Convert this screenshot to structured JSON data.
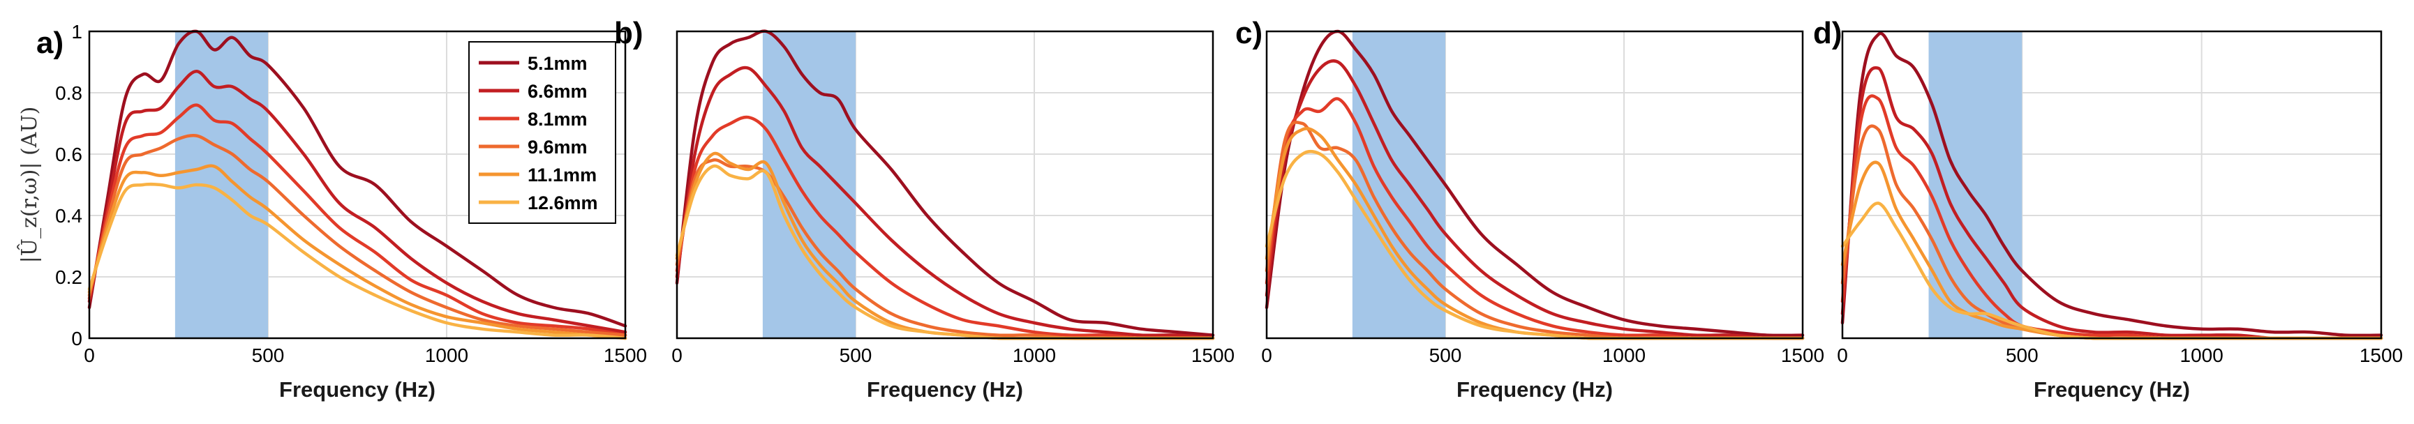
{
  "figure": {
    "ylabel": "|Û_z(r,ω)| (AU)",
    "xlabel": "Frequency (Hz)",
    "shaded_band_color": "#a4c6e8"
  },
  "chart_data": [
    {
      "panel": "a)",
      "type": "line",
      "xlabel": "Frequency (Hz)",
      "ylabel": "|Û_z(r,ω)| (AU)",
      "xlim": [
        0,
        1500
      ],
      "ylim": [
        0,
        1
      ],
      "xticks": [
        "0",
        "500",
        "1000",
        "1500"
      ],
      "yticks": [
        "0",
        "0.2",
        "0.4",
        "0.6",
        "0.8",
        "1"
      ],
      "grid": true,
      "shaded_band": [
        240,
        500
      ],
      "legend": {
        "placement": "top-right",
        "entries": [
          "5.1mm",
          "6.6mm",
          "8.1mm",
          "9.6mm",
          "11.1mm",
          "12.6mm"
        ]
      },
      "x": [
        0,
        50,
        100,
        150,
        200,
        250,
        300,
        350,
        400,
        450,
        500,
        600,
        700,
        800,
        900,
        1000,
        1100,
        1200,
        1300,
        1400,
        1500
      ],
      "series": [
        {
          "name": "5.1mm",
          "color": "#9d0f1f",
          "values": [
            0.1,
            0.45,
            0.78,
            0.86,
            0.84,
            0.96,
            1.0,
            0.94,
            0.98,
            0.92,
            0.89,
            0.75,
            0.56,
            0.5,
            0.38,
            0.3,
            0.22,
            0.14,
            0.1,
            0.08,
            0.04
          ]
        },
        {
          "name": "6.6mm",
          "color": "#c21e22",
          "values": [
            0.12,
            0.42,
            0.7,
            0.74,
            0.75,
            0.82,
            0.87,
            0.82,
            0.82,
            0.78,
            0.74,
            0.6,
            0.44,
            0.36,
            0.26,
            0.18,
            0.12,
            0.08,
            0.06,
            0.04,
            0.02
          ]
        },
        {
          "name": "8.1mm",
          "color": "#e23b28",
          "values": [
            0.13,
            0.4,
            0.62,
            0.66,
            0.67,
            0.72,
            0.76,
            0.71,
            0.7,
            0.65,
            0.6,
            0.48,
            0.36,
            0.28,
            0.19,
            0.14,
            0.08,
            0.05,
            0.04,
            0.03,
            0.01
          ]
        },
        {
          "name": "9.6mm",
          "color": "#ee6a2e",
          "values": [
            0.14,
            0.38,
            0.57,
            0.6,
            0.62,
            0.65,
            0.66,
            0.63,
            0.6,
            0.55,
            0.51,
            0.4,
            0.3,
            0.22,
            0.15,
            0.1,
            0.06,
            0.04,
            0.03,
            0.02,
            0.01
          ]
        },
        {
          "name": "11.1mm",
          "color": "#f5952f",
          "values": [
            0.15,
            0.36,
            0.52,
            0.54,
            0.53,
            0.54,
            0.55,
            0.56,
            0.51,
            0.46,
            0.42,
            0.32,
            0.24,
            0.17,
            0.11,
            0.07,
            0.05,
            0.03,
            0.02,
            0.01,
            0.0
          ]
        },
        {
          "name": "12.6mm",
          "color": "#f9b244",
          "values": [
            0.16,
            0.34,
            0.48,
            0.5,
            0.5,
            0.49,
            0.5,
            0.49,
            0.45,
            0.4,
            0.37,
            0.28,
            0.2,
            0.14,
            0.09,
            0.05,
            0.03,
            0.02,
            0.01,
            0.01,
            0.0
          ]
        }
      ]
    },
    {
      "panel": "b)",
      "type": "line",
      "xlabel": "Frequency (Hz)",
      "xlim": [
        0,
        1500
      ],
      "ylim": [
        0,
        1
      ],
      "xticks": [
        "0",
        "500",
        "1000",
        "1500"
      ],
      "grid": true,
      "shaded_band": [
        240,
        500
      ],
      "x": [
        0,
        50,
        100,
        150,
        200,
        250,
        300,
        350,
        400,
        450,
        500,
        600,
        700,
        800,
        900,
        1000,
        1100,
        1200,
        1300,
        1400,
        1500
      ],
      "series": [
        {
          "name": "5.1mm",
          "color": "#9d0f1f",
          "values": [
            0.18,
            0.68,
            0.9,
            0.96,
            0.98,
            1.0,
            0.95,
            0.86,
            0.8,
            0.78,
            0.68,
            0.55,
            0.4,
            0.28,
            0.18,
            0.12,
            0.06,
            0.05,
            0.03,
            0.02,
            0.01
          ]
        },
        {
          "name": "6.6mm",
          "color": "#c21e22",
          "values": [
            0.2,
            0.6,
            0.8,
            0.86,
            0.88,
            0.82,
            0.74,
            0.62,
            0.56,
            0.5,
            0.44,
            0.32,
            0.22,
            0.14,
            0.08,
            0.05,
            0.03,
            0.02,
            0.01,
            0.01,
            0.0
          ]
        },
        {
          "name": "8.1mm",
          "color": "#e23b28",
          "values": [
            0.22,
            0.55,
            0.66,
            0.7,
            0.72,
            0.68,
            0.58,
            0.48,
            0.4,
            0.34,
            0.28,
            0.18,
            0.11,
            0.06,
            0.04,
            0.02,
            0.01,
            0.01,
            0.0,
            0.0,
            0.0
          ]
        },
        {
          "name": "9.6mm",
          "color": "#ee6a2e",
          "values": [
            0.24,
            0.52,
            0.58,
            0.56,
            0.56,
            0.54,
            0.46,
            0.36,
            0.28,
            0.22,
            0.16,
            0.08,
            0.04,
            0.02,
            0.01,
            0.01,
            0.0,
            0.0,
            0.0,
            0.0,
            0.0
          ]
        },
        {
          "name": "11.1mm",
          "color": "#f5952f",
          "values": [
            0.26,
            0.5,
            0.6,
            0.57,
            0.55,
            0.57,
            0.44,
            0.32,
            0.24,
            0.18,
            0.12,
            0.05,
            0.02,
            0.01,
            0.0,
            0.0,
            0.0,
            0.0,
            0.0,
            0.0,
            0.0
          ]
        },
        {
          "name": "12.6mm",
          "color": "#f9b244",
          "values": [
            0.27,
            0.48,
            0.56,
            0.53,
            0.52,
            0.54,
            0.4,
            0.29,
            0.21,
            0.15,
            0.1,
            0.04,
            0.02,
            0.01,
            0.0,
            0.0,
            0.0,
            0.0,
            0.0,
            0.0,
            0.0
          ]
        }
      ]
    },
    {
      "panel": "c)",
      "type": "line",
      "xlabel": "Frequency (Hz)",
      "xlim": [
        0,
        1500
      ],
      "ylim": [
        0,
        1
      ],
      "xticks": [
        "0",
        "500",
        "1000",
        "1500"
      ],
      "grid": true,
      "shaded_band": [
        240,
        500
      ],
      "x": [
        0,
        50,
        100,
        150,
        200,
        250,
        300,
        350,
        400,
        450,
        500,
        600,
        700,
        800,
        900,
        1000,
        1100,
        1200,
        1300,
        1400,
        1500
      ],
      "series": [
        {
          "name": "5.1mm",
          "color": "#9d0f1f",
          "values": [
            0.1,
            0.55,
            0.8,
            0.95,
            1.0,
            0.94,
            0.86,
            0.74,
            0.66,
            0.58,
            0.5,
            0.34,
            0.24,
            0.15,
            0.1,
            0.06,
            0.04,
            0.03,
            0.02,
            0.01,
            0.01
          ]
        },
        {
          "name": "6.6mm",
          "color": "#c21e22",
          "values": [
            0.14,
            0.58,
            0.78,
            0.88,
            0.9,
            0.82,
            0.7,
            0.58,
            0.5,
            0.42,
            0.34,
            0.22,
            0.14,
            0.08,
            0.05,
            0.03,
            0.02,
            0.01,
            0.01,
            0.0,
            0.0
          ]
        },
        {
          "name": "8.1mm",
          "color": "#e23b28",
          "values": [
            0.18,
            0.62,
            0.74,
            0.74,
            0.78,
            0.7,
            0.56,
            0.46,
            0.38,
            0.3,
            0.24,
            0.14,
            0.08,
            0.04,
            0.02,
            0.01,
            0.01,
            0.0,
            0.0,
            0.0,
            0.0
          ]
        },
        {
          "name": "9.6mm",
          "color": "#ee6a2e",
          "values": [
            0.22,
            0.64,
            0.7,
            0.62,
            0.62,
            0.58,
            0.46,
            0.36,
            0.28,
            0.22,
            0.16,
            0.08,
            0.04,
            0.02,
            0.01,
            0.0,
            0.0,
            0.0,
            0.0,
            0.0,
            0.0
          ]
        },
        {
          "name": "11.1mm",
          "color": "#f5952f",
          "values": [
            0.26,
            0.6,
            0.68,
            0.66,
            0.58,
            0.5,
            0.4,
            0.3,
            0.22,
            0.16,
            0.11,
            0.05,
            0.02,
            0.01,
            0.0,
            0.0,
            0.0,
            0.0,
            0.0,
            0.0,
            0.0
          ]
        },
        {
          "name": "12.6mm",
          "color": "#f9b244",
          "values": [
            0.3,
            0.52,
            0.6,
            0.6,
            0.54,
            0.45,
            0.36,
            0.27,
            0.19,
            0.13,
            0.09,
            0.04,
            0.02,
            0.01,
            0.0,
            0.0,
            0.0,
            0.0,
            0.0,
            0.0,
            0.0
          ]
        }
      ]
    },
    {
      "panel": "d)",
      "type": "line",
      "xlabel": "Frequency (Hz)",
      "xlim": [
        0,
        1500
      ],
      "ylim": [
        0,
        1
      ],
      "xticks": [
        "0",
        "500",
        "1000",
        "1500"
      ],
      "grid": true,
      "shaded_band": [
        240,
        500
      ],
      "x": [
        0,
        50,
        100,
        150,
        200,
        250,
        300,
        350,
        400,
        450,
        500,
        600,
        700,
        800,
        900,
        1000,
        1100,
        1200,
        1300,
        1400,
        1500
      ],
      "series": [
        {
          "name": "5.1mm",
          "color": "#9d0f1f",
          "values": [
            0.05,
            0.8,
            0.99,
            0.92,
            0.88,
            0.76,
            0.58,
            0.48,
            0.4,
            0.3,
            0.22,
            0.12,
            0.08,
            0.06,
            0.04,
            0.03,
            0.03,
            0.02,
            0.02,
            0.01,
            0.01
          ]
        },
        {
          "name": "6.6mm",
          "color": "#c21e22",
          "values": [
            0.08,
            0.75,
            0.88,
            0.72,
            0.68,
            0.6,
            0.44,
            0.34,
            0.26,
            0.18,
            0.1,
            0.04,
            0.02,
            0.02,
            0.01,
            0.01,
            0.01,
            0.0,
            0.0,
            0.0,
            0.0
          ]
        },
        {
          "name": "8.1mm",
          "color": "#e23b28",
          "values": [
            0.12,
            0.7,
            0.78,
            0.62,
            0.56,
            0.46,
            0.32,
            0.22,
            0.14,
            0.08,
            0.04,
            0.02,
            0.01,
            0.01,
            0.0,
            0.0,
            0.0,
            0.0,
            0.0,
            0.0,
            0.0
          ]
        },
        {
          "name": "9.6mm",
          "color": "#ee6a2e",
          "values": [
            0.18,
            0.62,
            0.68,
            0.5,
            0.42,
            0.32,
            0.2,
            0.12,
            0.08,
            0.05,
            0.03,
            0.01,
            0.0,
            0.0,
            0.0,
            0.0,
            0.0,
            0.0,
            0.0,
            0.0,
            0.0
          ]
        },
        {
          "name": "11.1mm",
          "color": "#f5952f",
          "values": [
            0.24,
            0.5,
            0.57,
            0.42,
            0.32,
            0.22,
            0.12,
            0.08,
            0.06,
            0.04,
            0.03,
            0.01,
            0.0,
            0.0,
            0.0,
            0.0,
            0.0,
            0.0,
            0.0,
            0.0,
            0.0
          ]
        },
        {
          "name": "12.6mm",
          "color": "#f9b244",
          "values": [
            0.3,
            0.38,
            0.44,
            0.36,
            0.26,
            0.16,
            0.1,
            0.08,
            0.08,
            0.06,
            0.04,
            0.01,
            0.0,
            0.0,
            0.0,
            0.0,
            0.0,
            0.0,
            0.0,
            0.0,
            0.0
          ]
        }
      ]
    }
  ]
}
